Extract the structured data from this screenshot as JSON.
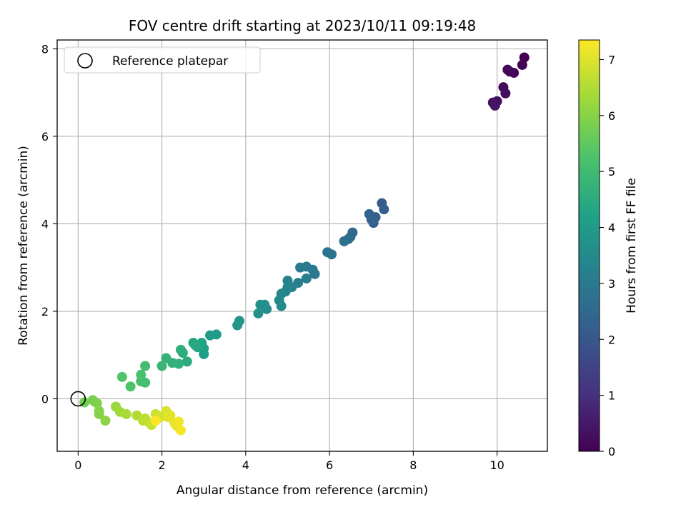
{
  "chart_data": {
    "type": "scatter",
    "title": "FOV centre drift starting at 2023/10/11 09:19:48",
    "xlabel": "Angular distance from reference (arcmin)",
    "ylabel": "Rotation from reference (arcmin)",
    "xlim": [
      -0.5,
      11.2
    ],
    "ylim": [
      -1.2,
      8.2
    ],
    "xticks": [
      0,
      2,
      4,
      6,
      8,
      10
    ],
    "yticks": [
      0,
      2,
      4,
      6,
      8
    ],
    "grid": true,
    "legend": {
      "location": "top-left",
      "entries": [
        "Reference platepar"
      ]
    },
    "reference_point": {
      "x": 0,
      "y": 0
    },
    "colorbar": {
      "label": "Hours from first FF file",
      "range": [
        0,
        7.35
      ],
      "ticks": [
        0,
        1,
        2,
        3,
        4,
        5,
        6,
        7
      ],
      "colormap": "viridis"
    },
    "series": [
      {
        "marker": "filled-circle",
        "points": [
          [
            10.65,
            7.8,
            0.0
          ],
          [
            10.6,
            7.63,
            0.05
          ],
          [
            10.4,
            7.45,
            0.1
          ],
          [
            10.3,
            7.48,
            0.14
          ],
          [
            10.25,
            7.52,
            0.18
          ],
          [
            10.15,
            7.12,
            0.22
          ],
          [
            10.2,
            6.98,
            0.26
          ],
          [
            10.0,
            6.8,
            0.3
          ],
          [
            9.9,
            6.77,
            0.34
          ],
          [
            9.95,
            6.7,
            0.38
          ],
          [
            7.25,
            4.47,
            2.1
          ],
          [
            7.3,
            4.33,
            2.15
          ],
          [
            7.1,
            4.15,
            2.2
          ],
          [
            7.0,
            4.1,
            2.25
          ],
          [
            7.05,
            4.02,
            2.3
          ],
          [
            6.95,
            4.22,
            2.35
          ],
          [
            6.55,
            3.8,
            2.5
          ],
          [
            6.5,
            3.7,
            2.55
          ],
          [
            6.45,
            3.65,
            2.6
          ],
          [
            6.35,
            3.6,
            2.65
          ],
          [
            6.05,
            3.3,
            2.75
          ],
          [
            5.95,
            3.35,
            2.8
          ],
          [
            5.65,
            2.85,
            2.9
          ],
          [
            5.6,
            2.95,
            2.95
          ],
          [
            5.45,
            3.02,
            3.0
          ],
          [
            5.3,
            3.0,
            3.05
          ],
          [
            5.45,
            2.75,
            3.1
          ],
          [
            5.25,
            2.65,
            3.15
          ],
          [
            5.1,
            2.55,
            3.2
          ],
          [
            5.0,
            2.7,
            3.25
          ],
          [
            5.0,
            2.55,
            3.3
          ],
          [
            4.95,
            2.45,
            3.35
          ],
          [
            4.85,
            2.4,
            3.4
          ],
          [
            4.8,
            2.25,
            3.45
          ],
          [
            4.85,
            2.12,
            3.5
          ],
          [
            4.5,
            2.05,
            3.55
          ],
          [
            4.45,
            2.15,
            3.6
          ],
          [
            4.35,
            2.15,
            3.65
          ],
          [
            4.3,
            1.95,
            3.7
          ],
          [
            3.85,
            1.78,
            3.8
          ],
          [
            3.8,
            1.68,
            3.85
          ],
          [
            3.3,
            1.47,
            4.0
          ],
          [
            3.15,
            1.45,
            4.05
          ],
          [
            3.0,
            1.02,
            4.15
          ],
          [
            3.0,
            1.15,
            4.2
          ],
          [
            2.95,
            1.28,
            4.25
          ],
          [
            2.85,
            1.18,
            4.3
          ],
          [
            2.75,
            1.28,
            4.35
          ],
          [
            2.8,
            1.22,
            4.4
          ],
          [
            2.6,
            0.85,
            4.5
          ],
          [
            2.5,
            1.05,
            4.55
          ],
          [
            2.45,
            1.12,
            4.6
          ],
          [
            2.4,
            0.8,
            4.65
          ],
          [
            2.25,
            0.82,
            4.7
          ],
          [
            2.1,
            0.93,
            4.75
          ],
          [
            2.0,
            0.75,
            4.85
          ],
          [
            1.6,
            0.75,
            5.1
          ],
          [
            1.6,
            0.37,
            5.15
          ],
          [
            1.5,
            0.4,
            5.2
          ],
          [
            1.5,
            0.55,
            5.25
          ],
          [
            1.25,
            0.28,
            5.3
          ],
          [
            1.05,
            0.5,
            5.35
          ],
          [
            0.15,
            -0.08,
            5.75
          ],
          [
            0.35,
            -0.03,
            5.8
          ],
          [
            0.4,
            -0.07,
            5.85
          ],
          [
            0.45,
            -0.1,
            5.9
          ],
          [
            0.5,
            -0.28,
            5.95
          ],
          [
            0.5,
            -0.35,
            6.0
          ],
          [
            0.65,
            -0.5,
            6.05
          ],
          [
            0.9,
            -0.18,
            6.2
          ],
          [
            1.0,
            -0.3,
            6.3
          ],
          [
            1.15,
            -0.35,
            6.4
          ],
          [
            1.4,
            -0.38,
            6.5
          ],
          [
            1.55,
            -0.5,
            6.6
          ],
          [
            1.6,
            -0.45,
            6.65
          ],
          [
            1.7,
            -0.55,
            6.7
          ],
          [
            1.75,
            -0.6,
            6.75
          ],
          [
            1.85,
            -0.35,
            6.8
          ],
          [
            1.9,
            -0.45,
            6.85
          ],
          [
            2.0,
            -0.4,
            6.9
          ],
          [
            2.1,
            -0.28,
            6.95
          ],
          [
            2.15,
            -0.42,
            7.0
          ],
          [
            2.2,
            -0.38,
            7.05
          ],
          [
            2.3,
            -0.55,
            7.1
          ],
          [
            2.35,
            -0.62,
            7.15
          ],
          [
            2.4,
            -0.52,
            7.2
          ],
          [
            2.45,
            -0.72,
            7.25
          ],
          [
            1.85,
            -0.5,
            7.3
          ]
        ]
      }
    ]
  }
}
